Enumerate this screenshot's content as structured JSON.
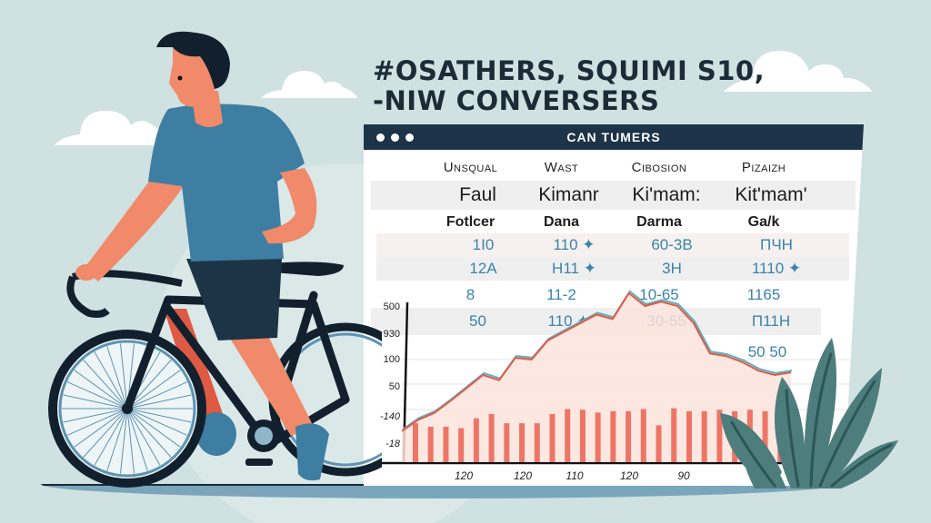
{
  "headline": {
    "line1": "#OSATHERS, SQUIMI S10,",
    "line2": "-NIW CONVERSERS"
  },
  "window": {
    "title": "CAN TUMERS",
    "controls": [
      "dot",
      "dot",
      "dot"
    ]
  },
  "table": {
    "headers": [
      "Unsqual",
      "Wast",
      "Cibosion",
      "Pizaizh"
    ],
    "rows": [
      {
        "cells": [
          "Faul",
          "Kimanr",
          "Ki'mam:",
          "Kit'mam'"
        ],
        "style": "big"
      },
      {
        "cells": [
          "Fotlcer",
          "Dana",
          "Darma",
          "Ga/k"
        ],
        "style": "bold"
      },
      {
        "cells": [
          "1I0",
          "110 ✦",
          "60-3B",
          "ΠЧH"
        ],
        "style": "num"
      },
      {
        "cells": [
          "12A",
          "H11 ✦",
          "3H",
          "1110 ✦"
        ],
        "style": "num"
      },
      {
        "cells": [
          "8",
          "11-2",
          "10-65",
          "1165"
        ],
        "style": "num"
      },
      {
        "cells": [
          "50",
          "110 ✦",
          "30-55",
          "Π11H"
        ],
        "style": "num"
      }
    ],
    "annotation": "50 50"
  },
  "chart_data": {
    "type": "bar",
    "title": "",
    "xlabel": "",
    "ylabel": "",
    "ytick_labels": [
      "500",
      "930",
      "100",
      "50",
      "-140",
      "-18"
    ],
    "xtick_labels": [
      "120",
      "120",
      "110",
      "120",
      "90"
    ],
    "grid": true,
    "bars": {
      "color": "#ee7566",
      "values": [
        55,
        50,
        50,
        48,
        62,
        68,
        55,
        55,
        55,
        68,
        75,
        74,
        70,
        72,
        72,
        75,
        52,
        76,
        72,
        72,
        74,
        72,
        74,
        72,
        72
      ]
    },
    "series": [
      {
        "name": "line",
        "color": "#e05a46",
        "type": "area",
        "values": [
          15,
          28,
          36,
          50,
          65,
          80,
          74,
          100,
          98,
          120,
          130,
          140,
          150,
          145,
          175,
          160,
          165,
          160,
          140,
          105,
          102,
          95,
          85,
          80,
          83
        ]
      },
      {
        "name": "line-secondary",
        "color": "#5bb0c4",
        "type": "line"
      }
    ]
  },
  "colors": {
    "background": "#cfe1e1",
    "titlebar": "#1d3347",
    "shirt": "#3d7ea2",
    "skin": "#f08a6a",
    "shorts": "#1d3346",
    "plant": "#4d7d7c",
    "bike": "#12202e"
  }
}
